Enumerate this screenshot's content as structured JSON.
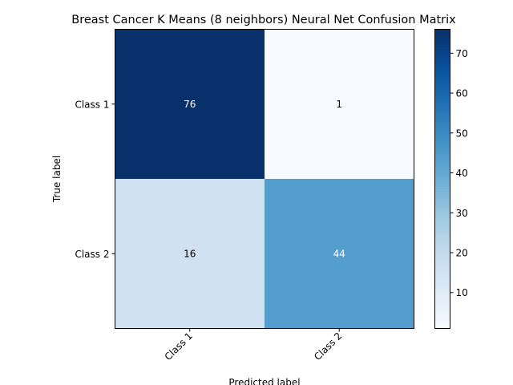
{
  "chart_data": {
    "type": "heatmap",
    "title": "Breast Cancer K Means (8 neighbors) Neural Net Confusion Matrix",
    "xlabel": "Predicted label",
    "ylabel": "True label",
    "x_categories": [
      "Class 1",
      "Class 2"
    ],
    "y_categories": [
      "Class 1",
      "Class 2"
    ],
    "values": [
      [
        76,
        1
      ],
      [
        16,
        44
      ]
    ],
    "colormap": "Blues",
    "color_range": [
      1,
      76
    ],
    "colorbar_ticks": [
      10,
      20,
      30,
      40,
      50,
      60,
      70
    ],
    "x_tick_rotation_deg": 45,
    "grid": false
  }
}
